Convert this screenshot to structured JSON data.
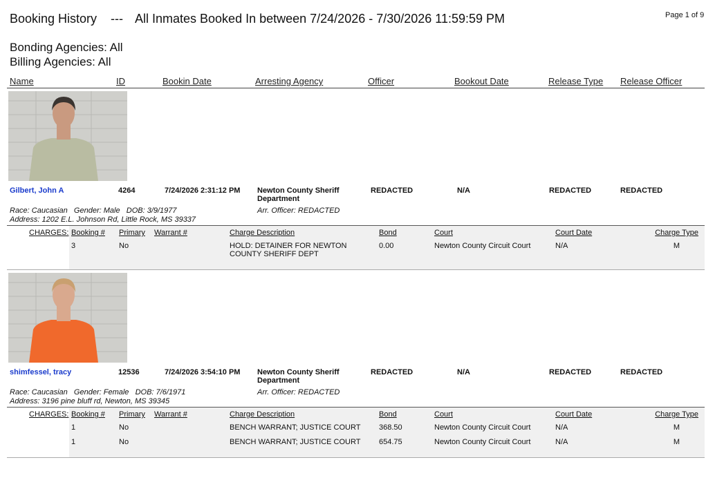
{
  "header": {
    "title": "Booking History",
    "separator": "---",
    "range": "All Inmates Booked In between 7/24/2026 - 7/30/2026 11:59:59 PM",
    "page": "Page 1 of 9",
    "bonding": "Bonding Agencies: All",
    "billing": "Billing Agencies: All"
  },
  "columns": [
    "Name",
    "ID",
    "Bookin Date",
    "Arresting Agency",
    "Officer",
    "Bookout Date",
    "Release Type",
    "Release Officer"
  ],
  "charge_columns": [
    "CHARGES:",
    "Booking #",
    "Primary",
    "Warrant #",
    "Charge Description",
    "Bond",
    "Court",
    "Court Date",
    "Charge Type"
  ],
  "records": [
    {
      "name": "Gilbert, John A",
      "id": "4264",
      "bookin_date": "7/24/2026 2:31:12 PM",
      "arresting_agency": "Newton County Sheriff Department",
      "officer": "REDACTED",
      "bookout_date": "N/A",
      "release_type": "REDACTED",
      "release_officer": "REDACTED",
      "details": "Race: Caucasian   Gender: Male   DOB: 3/9/1977",
      "address": "Address: 1202 E.L. Johnson Rd, Little Rock, MS 39337",
      "arr_officer": "Arr. Officer: REDACTED",
      "charges": [
        {
          "booking": "3",
          "primary": "No",
          "description": "HOLD: DETAINER FOR NEWTON COUNTY SHERIFF DEPT",
          "bond": "0.00",
          "court": "Newton County Circuit Court",
          "court_date": "N/A",
          "charge_type": "M"
        }
      ]
    },
    {
      "name": "shimfessel, tracy",
      "id": "12536",
      "bookin_date": "7/24/2026 3:54:10 PM",
      "arresting_agency": "Newton County Sheriff Department",
      "officer": "REDACTED",
      "bookout_date": "N/A",
      "release_type": "REDACTED",
      "release_officer": "REDACTED",
      "details": "Race: Caucasian   Gender: Female   DOB: 7/6/1971",
      "address": "Address: 3196 pine bluff rd, Newton, MS 39345",
      "arr_officer": "Arr. Officer: REDACTED",
      "charges": [
        {
          "booking": "1",
          "primary": "No",
          "description": "BENCH WARRANT; JUSTICE COURT",
          "bond": "368.50",
          "court": "Newton County Circuit Court",
          "court_date": "N/A",
          "charge_type": "M"
        },
        {
          "booking": "1",
          "primary": "No",
          "description": "BENCH WARRANT; JUSTICE COURT",
          "bond": "654.75",
          "court": "Newton County Circuit Court",
          "court_date": "N/A",
          "charge_type": "M"
        }
      ]
    }
  ]
}
